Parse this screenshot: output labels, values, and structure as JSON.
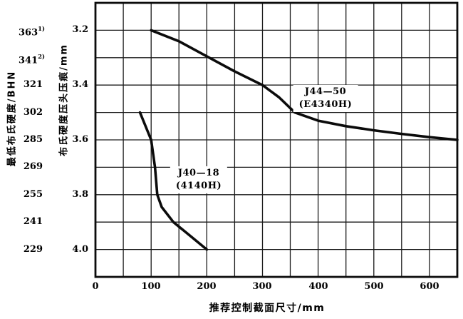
{
  "chart_data": {
    "type": "line",
    "title": "",
    "xlabel": "推荐控制截面尺寸/mm",
    "ylabel_outer": "最低布氏硬度/BHN",
    "ylabel_inner": "布氏硬度压头压痕/mm",
    "x_range": [
      0,
      650
    ],
    "y_range_mm": [
      3.1,
      4.1
    ],
    "y_axis_direction": "indentation increases downward (hardness decreases downward)",
    "grid": {
      "x_step": 50,
      "y_step": 0.1,
      "visible": true,
      "legend_position": "inline-labels"
    },
    "x_ticks": [
      0,
      100,
      200,
      300,
      400,
      500,
      600
    ],
    "y_ticks": [
      {
        "mm": 3.2,
        "mm_label": "3.2",
        "bhn_label": "363",
        "bhn_sup": "1)"
      },
      {
        "mm": 3.3,
        "mm_label": "",
        "bhn_label": "341",
        "bhn_sup": "2)"
      },
      {
        "mm": 3.4,
        "mm_label": "3.4",
        "bhn_label": "321",
        "bhn_sup": ""
      },
      {
        "mm": 3.5,
        "mm_label": "",
        "bhn_label": "302",
        "bhn_sup": ""
      },
      {
        "mm": 3.6,
        "mm_label": "3.6",
        "bhn_label": "285",
        "bhn_sup": ""
      },
      {
        "mm": 3.7,
        "mm_label": "",
        "bhn_label": "269",
        "bhn_sup": ""
      },
      {
        "mm": 3.8,
        "mm_label": "3.8",
        "bhn_label": "255",
        "bhn_sup": ""
      },
      {
        "mm": 3.9,
        "mm_label": "",
        "bhn_label": "241",
        "bhn_sup": ""
      },
      {
        "mm": 4.0,
        "mm_label": "4.0",
        "bhn_label": "229",
        "bhn_sup": ""
      }
    ],
    "series": [
      {
        "name": "J44-50 (E4340H)",
        "label_lines": [
          "J44—50",
          "(E4340H)"
        ],
        "label_at": [
          413,
          3.45
        ],
        "points": [
          [
            100,
            3.2
          ],
          [
            150,
            3.24
          ],
          [
            200,
            3.295
          ],
          [
            250,
            3.35
          ],
          [
            300,
            3.4
          ],
          [
            330,
            3.445
          ],
          [
            358,
            3.5
          ],
          [
            400,
            3.53
          ],
          [
            450,
            3.55
          ],
          [
            500,
            3.565
          ],
          [
            550,
            3.578
          ],
          [
            600,
            3.59
          ],
          [
            650,
            3.6
          ]
        ]
      },
      {
        "name": "J40-18 (4140H)",
        "label_lines": [
          "J40—18",
          "(4140H)"
        ],
        "label_at": [
          186,
          3.745
        ],
        "points": [
          [
            80,
            3.5
          ],
          [
            100,
            3.6
          ],
          [
            107,
            3.7
          ],
          [
            111,
            3.8
          ],
          [
            119,
            3.845
          ],
          [
            140,
            3.9
          ],
          [
            170,
            3.95
          ],
          [
            200,
            4.0
          ]
        ]
      }
    ],
    "colors": {
      "line": "#0b0b0b",
      "grid": "#1a1a1a",
      "border": "#0b0b0b",
      "background": "#ffffff"
    }
  }
}
